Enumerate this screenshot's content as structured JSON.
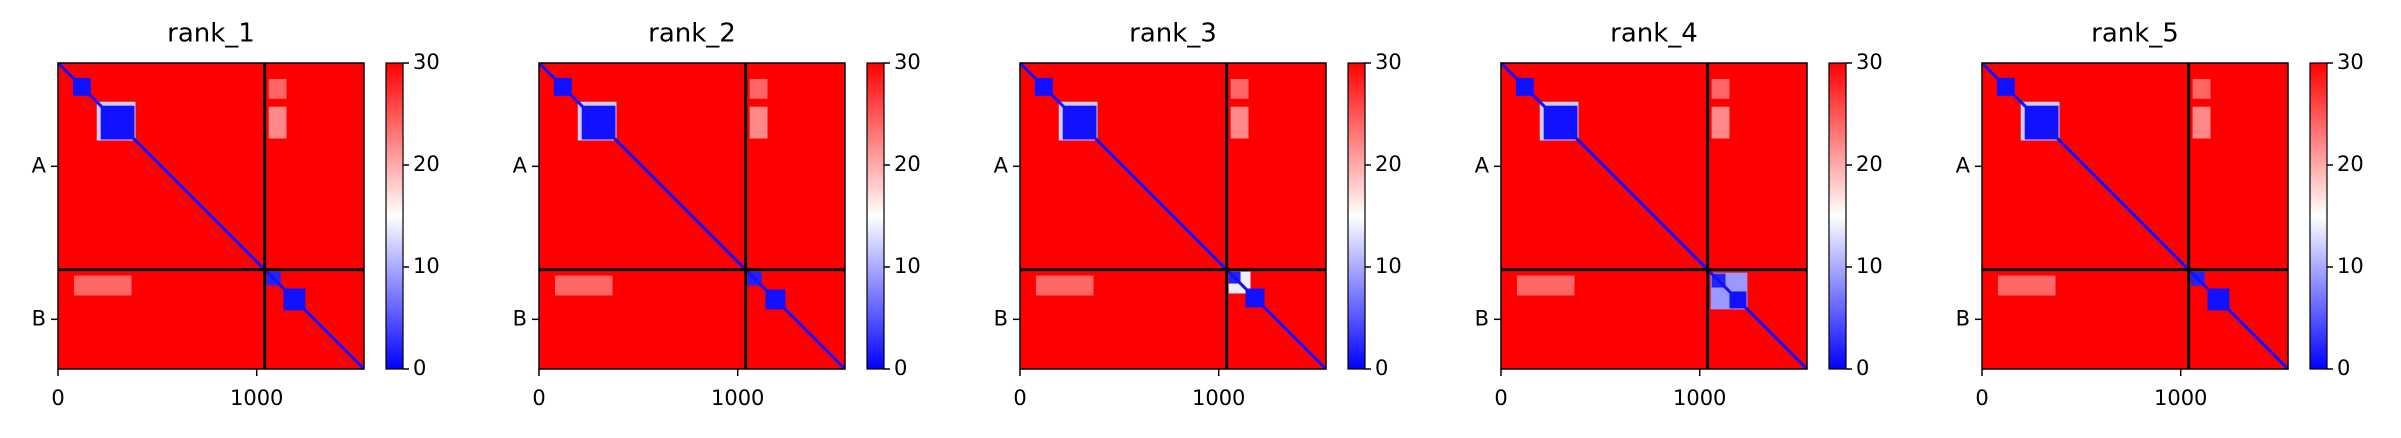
{
  "chart_data": [
    {
      "type": "heatmap",
      "title": "rank_1",
      "xlim": [
        0,
        1540
      ],
      "ylim": [
        1540,
        0
      ],
      "xticks": [
        0,
        1000
      ],
      "yticks": [
        {
          "value": 520,
          "label": "A"
        },
        {
          "value": 1290,
          "label": "B"
        }
      ],
      "clim": [
        0,
        30
      ],
      "cticks": [
        0,
        10,
        20,
        30
      ],
      "background_value": 30,
      "diagonal_value": 1,
      "chain_breaks": [
        1040
      ],
      "regions": [
        {
          "x": [
            75,
            165
          ],
          "y": [
            75,
            165
          ],
          "value": 1
        },
        {
          "x": [
            195,
            390
          ],
          "y": [
            195,
            390
          ],
          "value": 12
        },
        {
          "x": [
            215,
            385
          ],
          "y": [
            215,
            385
          ],
          "value": 1
        },
        {
          "x": [
            1060,
            1150
          ],
          "y": [
            80,
            180
          ],
          "value": 24
        },
        {
          "x": [
            1060,
            1150
          ],
          "y": [
            220,
            380
          ],
          "value": 22
        },
        {
          "x": [
            80,
            370
          ],
          "y": [
            1070,
            1170
          ],
          "value": 24
        },
        {
          "x": [
            1050,
            1120
          ],
          "y": [
            1050,
            1120
          ],
          "value": 2
        },
        {
          "x": [
            1135,
            1245
          ],
          "y": [
            1135,
            1245
          ],
          "value": 1
        }
      ]
    },
    {
      "type": "heatmap",
      "title": "rank_2",
      "xlim": [
        0,
        1540
      ],
      "ylim": [
        1540,
        0
      ],
      "xticks": [
        0,
        1000
      ],
      "yticks": [
        {
          "value": 520,
          "label": "A"
        },
        {
          "value": 1290,
          "label": "B"
        }
      ],
      "clim": [
        0,
        30
      ],
      "cticks": [
        0,
        10,
        20,
        30
      ],
      "background_value": 30,
      "diagonal_value": 1,
      "chain_breaks": [
        1040
      ],
      "regions": [
        {
          "x": [
            75,
            165
          ],
          "y": [
            75,
            165
          ],
          "value": 1
        },
        {
          "x": [
            195,
            390
          ],
          "y": [
            195,
            390
          ],
          "value": 12
        },
        {
          "x": [
            215,
            385
          ],
          "y": [
            215,
            385
          ],
          "value": 1
        },
        {
          "x": [
            1060,
            1150
          ],
          "y": [
            80,
            180
          ],
          "value": 24
        },
        {
          "x": [
            1060,
            1150
          ],
          "y": [
            220,
            380
          ],
          "value": 22
        },
        {
          "x": [
            80,
            370
          ],
          "y": [
            1070,
            1170
          ],
          "value": 24
        },
        {
          "x": [
            1050,
            1120
          ],
          "y": [
            1050,
            1120
          ],
          "value": 2
        },
        {
          "x": [
            1140,
            1240
          ],
          "y": [
            1140,
            1240
          ],
          "value": 1
        }
      ]
    },
    {
      "type": "heatmap",
      "title": "rank_3",
      "xlim": [
        0,
        1540
      ],
      "ylim": [
        1540,
        0
      ],
      "xticks": [
        0,
        1000
      ],
      "yticks": [
        {
          "value": 520,
          "label": "A"
        },
        {
          "value": 1290,
          "label": "B"
        }
      ],
      "clim": [
        0,
        30
      ],
      "cticks": [
        0,
        10,
        20,
        30
      ],
      "background_value": 30,
      "diagonal_value": 1,
      "chain_breaks": [
        1040
      ],
      "regions": [
        {
          "x": [
            75,
            165
          ],
          "y": [
            75,
            165
          ],
          "value": 1
        },
        {
          "x": [
            195,
            390
          ],
          "y": [
            195,
            390
          ],
          "value": 12
        },
        {
          "x": [
            215,
            385
          ],
          "y": [
            215,
            385
          ],
          "value": 1
        },
        {
          "x": [
            1060,
            1150
          ],
          "y": [
            80,
            180
          ],
          "value": 24
        },
        {
          "x": [
            1060,
            1150
          ],
          "y": [
            220,
            380
          ],
          "value": 22
        },
        {
          "x": [
            80,
            370
          ],
          "y": [
            1070,
            1170
          ],
          "value": 24
        },
        {
          "x": [
            1050,
            1160
          ],
          "y": [
            1050,
            1160
          ],
          "value": 14
        },
        {
          "x": [
            1050,
            1110
          ],
          "y": [
            1050,
            1110
          ],
          "value": 2
        },
        {
          "x": [
            1135,
            1230
          ],
          "y": [
            1135,
            1230
          ],
          "value": 1
        }
      ]
    },
    {
      "type": "heatmap",
      "title": "rank_4",
      "xlim": [
        0,
        1540
      ],
      "ylim": [
        1540,
        0
      ],
      "xticks": [
        0,
        1000
      ],
      "yticks": [
        {
          "value": 520,
          "label": "A"
        },
        {
          "value": 1290,
          "label": "B"
        }
      ],
      "clim": [
        0,
        30
      ],
      "cticks": [
        0,
        10,
        20,
        30
      ],
      "background_value": 30,
      "diagonal_value": 1,
      "chain_breaks": [
        1040
      ],
      "regions": [
        {
          "x": [
            75,
            165
          ],
          "y": [
            75,
            165
          ],
          "value": 1
        },
        {
          "x": [
            195,
            390
          ],
          "y": [
            195,
            390
          ],
          "value": 12
        },
        {
          "x": [
            215,
            385
          ],
          "y": [
            215,
            385
          ],
          "value": 1
        },
        {
          "x": [
            1060,
            1150
          ],
          "y": [
            80,
            180
          ],
          "value": 24
        },
        {
          "x": [
            1060,
            1150
          ],
          "y": [
            220,
            380
          ],
          "value": 22
        },
        {
          "x": [
            80,
            370
          ],
          "y": [
            1070,
            1170
          ],
          "value": 24
        },
        {
          "x": [
            1055,
            1240
          ],
          "y": [
            1055,
            1240
          ],
          "value": 9
        },
        {
          "x": [
            1060,
            1130
          ],
          "y": [
            1060,
            1130
          ],
          "value": 2
        },
        {
          "x": [
            1150,
            1235
          ],
          "y": [
            1150,
            1235
          ],
          "value": 1
        }
      ]
    },
    {
      "type": "heatmap",
      "title": "rank_5",
      "xlim": [
        0,
        1540
      ],
      "ylim": [
        1540,
        0
      ],
      "xticks": [
        0,
        1000
      ],
      "yticks": [
        {
          "value": 520,
          "label": "A"
        },
        {
          "value": 1290,
          "label": "B"
        }
      ],
      "clim": [
        0,
        30
      ],
      "cticks": [
        0,
        10,
        20,
        30
      ],
      "background_value": 30,
      "diagonal_value": 1,
      "chain_breaks": [
        1040
      ],
      "regions": [
        {
          "x": [
            75,
            165
          ],
          "y": [
            75,
            165
          ],
          "value": 1
        },
        {
          "x": [
            195,
            390
          ],
          "y": [
            195,
            390
          ],
          "value": 12
        },
        {
          "x": [
            215,
            385
          ],
          "y": [
            215,
            385
          ],
          "value": 1
        },
        {
          "x": [
            1060,
            1150
          ],
          "y": [
            80,
            180
          ],
          "value": 24
        },
        {
          "x": [
            1060,
            1150
          ],
          "y": [
            220,
            380
          ],
          "value": 22
        },
        {
          "x": [
            80,
            370
          ],
          "y": [
            1070,
            1170
          ],
          "value": 24
        },
        {
          "x": [
            1050,
            1120
          ],
          "y": [
            1050,
            1120
          ],
          "value": 2
        },
        {
          "x": [
            1135,
            1245
          ],
          "y": [
            1135,
            1245
          ],
          "value": 1
        }
      ]
    }
  ]
}
